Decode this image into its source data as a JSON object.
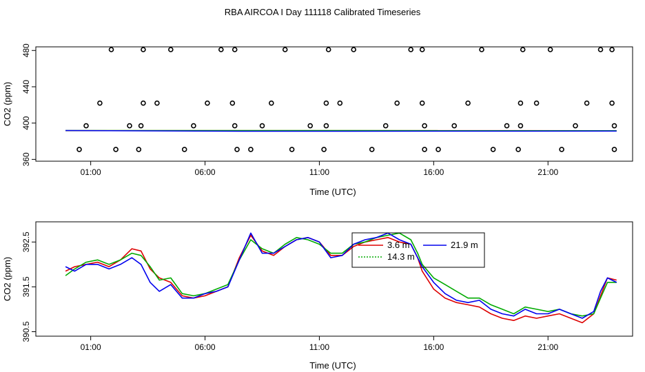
{
  "title": "RBA AIRCOA I  Day 111118  Calibrated Timeseries",
  "chart_data": [
    {
      "type": "scatter",
      "xlabel": "Time (UTC)",
      "ylabel": "CO2 (ppm)",
      "x_unit": "hours",
      "xlim": [
        -1.4,
        24.7
      ],
      "ylim": [
        358,
        484
      ],
      "xticks": [
        1,
        6,
        11,
        16,
        21
      ],
      "xtick_labels": [
        "01:00",
        "06:00",
        "11:00",
        "16:00",
        "21:00"
      ],
      "yticks": [
        360,
        400,
        440,
        480
      ],
      "ytick_labels": [
        "360",
        "400",
        "440",
        "480"
      ],
      "grid": false,
      "markers": [
        [
          0.5,
          371
        ],
        [
          0.8,
          397
        ],
        [
          1.4,
          422
        ],
        [
          1.9,
          481
        ],
        [
          2.1,
          371
        ],
        [
          2.7,
          397
        ],
        [
          3.1,
          371
        ],
        [
          3.2,
          397
        ],
        [
          3.3,
          422
        ],
        [
          3.3,
          481
        ],
        [
          3.9,
          422
        ],
        [
          4.5,
          481
        ],
        [
          5.1,
          371
        ],
        [
          5.5,
          397
        ],
        [
          6.1,
          422
        ],
        [
          6.7,
          481
        ],
        [
          7.2,
          422
        ],
        [
          7.3,
          481
        ],
        [
          7.3,
          397
        ],
        [
          7.4,
          371
        ],
        [
          8.0,
          371
        ],
        [
          8.5,
          397
        ],
        [
          8.9,
          422
        ],
        [
          9.5,
          481
        ],
        [
          9.8,
          371
        ],
        [
          10.6,
          397
        ],
        [
          11.2,
          371
        ],
        [
          11.3,
          422
        ],
        [
          11.3,
          397
        ],
        [
          11.4,
          481
        ],
        [
          11.9,
          422
        ],
        [
          12.5,
          481
        ],
        [
          13.3,
          371
        ],
        [
          13.9,
          397
        ],
        [
          14.4,
          422
        ],
        [
          15.0,
          481
        ],
        [
          15.5,
          481
        ],
        [
          15.5,
          422
        ],
        [
          15.6,
          397
        ],
        [
          15.6,
          371
        ],
        [
          16.2,
          371
        ],
        [
          16.9,
          397
        ],
        [
          17.5,
          422
        ],
        [
          18.1,
          481
        ],
        [
          18.6,
          371
        ],
        [
          19.2,
          397
        ],
        [
          19.7,
          371
        ],
        [
          19.8,
          397
        ],
        [
          19.8,
          422
        ],
        [
          19.9,
          481
        ],
        [
          20.5,
          422
        ],
        [
          21.1,
          481
        ],
        [
          21.6,
          371
        ],
        [
          22.2,
          397
        ],
        [
          22.7,
          422
        ],
        [
          23.3,
          481
        ],
        [
          23.8,
          481
        ],
        [
          23.8,
          422
        ],
        [
          23.9,
          397
        ],
        [
          23.9,
          371
        ]
      ],
      "lines": [
        {
          "color": "#dd0000",
          "values": [
            [
              -0.1,
              391.7
            ],
            [
              24.0,
              391.6
            ]
          ]
        },
        {
          "color": "#00aa00",
          "values": [
            [
              -0.1,
              391.8
            ],
            [
              24.0,
              391.7
            ]
          ]
        },
        {
          "color": "#0000ee",
          "values": [
            [
              -0.1,
              391.8
            ],
            [
              7.6,
              391.0
            ],
            [
              24.0,
              391.2
            ]
          ]
        }
      ]
    },
    {
      "type": "line",
      "xlabel": "Time (UTC)",
      "ylabel": "CO2 (ppm)",
      "x_unit": "hours",
      "xlim": [
        -1.4,
        24.7
      ],
      "ylim": [
        390.4,
        392.95
      ],
      "xticks": [
        1,
        6,
        11,
        16,
        21
      ],
      "xtick_labels": [
        "01:00",
        "06:00",
        "11:00",
        "16:00",
        "21:00"
      ],
      "yticks": [
        390.5,
        391.5,
        392.5
      ],
      "ytick_labels": [
        "390.5",
        "391.5",
        "392.5"
      ],
      "grid": false,
      "legend_position": "top-right",
      "series": [
        {
          "name": "3.6 m",
          "color": "#dd0000",
          "values": [
            [
              -0.1,
              391.85
            ],
            [
              0.3,
              391.95
            ],
            [
              0.8,
              392.0
            ],
            [
              1.3,
              392.05
            ],
            [
              1.8,
              391.95
            ],
            [
              2.3,
              392.1
            ],
            [
              2.8,
              392.35
            ],
            [
              3.2,
              392.3
            ],
            [
              3.6,
              391.9
            ],
            [
              4.0,
              391.7
            ],
            [
              4.5,
              391.6
            ],
            [
              5.0,
              391.3
            ],
            [
              5.5,
              391.25
            ],
            [
              6.0,
              391.3
            ],
            [
              6.5,
              391.4
            ],
            [
              7.0,
              391.5
            ],
            [
              7.5,
              392.15
            ],
            [
              8.0,
              392.65
            ],
            [
              8.5,
              392.3
            ],
            [
              9.0,
              392.2
            ],
            [
              9.5,
              392.4
            ],
            [
              10.0,
              392.55
            ],
            [
              10.5,
              392.6
            ],
            [
              11.0,
              392.5
            ],
            [
              11.5,
              392.2
            ],
            [
              12.0,
              392.2
            ],
            [
              12.5,
              392.4
            ],
            [
              13.0,
              392.5
            ],
            [
              13.5,
              392.55
            ],
            [
              14.0,
              392.6
            ],
            [
              14.5,
              392.5
            ],
            [
              15.0,
              392.45
            ],
            [
              15.3,
              392.15
            ],
            [
              15.5,
              391.85
            ],
            [
              16.0,
              391.45
            ],
            [
              16.5,
              391.25
            ],
            [
              17.0,
              391.15
            ],
            [
              17.5,
              391.1
            ],
            [
              18.0,
              391.05
            ],
            [
              18.5,
              390.9
            ],
            [
              19.0,
              390.8
            ],
            [
              19.5,
              390.75
            ],
            [
              20.0,
              390.85
            ],
            [
              20.5,
              390.8
            ],
            [
              21.0,
              390.85
            ],
            [
              21.5,
              390.9
            ],
            [
              22.0,
              390.8
            ],
            [
              22.5,
              390.7
            ],
            [
              23.0,
              390.9
            ],
            [
              23.3,
              391.3
            ],
            [
              23.6,
              391.7
            ],
            [
              24.0,
              391.65
            ]
          ]
        },
        {
          "name": "14.3 m",
          "color": "#00aa00",
          "values": [
            [
              -0.1,
              391.75
            ],
            [
              0.3,
              391.9
            ],
            [
              0.8,
              392.05
            ],
            [
              1.3,
              392.1
            ],
            [
              1.8,
              392.0
            ],
            [
              2.3,
              392.1
            ],
            [
              2.8,
              392.25
            ],
            [
              3.2,
              392.2
            ],
            [
              3.6,
              391.95
            ],
            [
              4.0,
              391.65
            ],
            [
              4.5,
              391.7
            ],
            [
              5.0,
              391.35
            ],
            [
              5.5,
              391.3
            ],
            [
              6.0,
              391.35
            ],
            [
              6.5,
              391.45
            ],
            [
              7.0,
              391.55
            ],
            [
              7.5,
              392.1
            ],
            [
              8.0,
              392.55
            ],
            [
              8.5,
              392.35
            ],
            [
              9.0,
              392.25
            ],
            [
              9.5,
              392.45
            ],
            [
              10.0,
              392.6
            ],
            [
              10.5,
              392.55
            ],
            [
              11.0,
              392.45
            ],
            [
              11.5,
              392.25
            ],
            [
              12.0,
              392.25
            ],
            [
              12.5,
              392.45
            ],
            [
              13.0,
              392.5
            ],
            [
              13.5,
              392.6
            ],
            [
              14.0,
              392.65
            ],
            [
              14.5,
              392.7
            ],
            [
              15.0,
              392.55
            ],
            [
              15.3,
              392.25
            ],
            [
              15.5,
              392.0
            ],
            [
              16.0,
              391.7
            ],
            [
              16.5,
              391.55
            ],
            [
              17.0,
              391.4
            ],
            [
              17.5,
              391.25
            ],
            [
              18.0,
              391.25
            ],
            [
              18.5,
              391.1
            ],
            [
              19.0,
              391.0
            ],
            [
              19.5,
              390.9
            ],
            [
              20.0,
              391.05
            ],
            [
              20.5,
              391.0
            ],
            [
              21.0,
              390.95
            ],
            [
              21.5,
              391.0
            ],
            [
              22.0,
              390.9
            ],
            [
              22.5,
              390.85
            ],
            [
              23.0,
              390.9
            ],
            [
              23.3,
              391.25
            ],
            [
              23.6,
              391.6
            ],
            [
              24.0,
              391.6
            ]
          ]
        },
        {
          "name": "21.9 m",
          "color": "#0000ee",
          "values": [
            [
              -0.1,
              391.95
            ],
            [
              0.3,
              391.85
            ],
            [
              0.8,
              392.0
            ],
            [
              1.3,
              392.0
            ],
            [
              1.8,
              391.9
            ],
            [
              2.3,
              392.0
            ],
            [
              2.8,
              392.15
            ],
            [
              3.2,
              392.0
            ],
            [
              3.6,
              391.6
            ],
            [
              4.0,
              391.4
            ],
            [
              4.5,
              391.55
            ],
            [
              5.0,
              391.25
            ],
            [
              5.5,
              391.25
            ],
            [
              6.0,
              391.35
            ],
            [
              6.5,
              391.4
            ],
            [
              7.0,
              391.5
            ],
            [
              7.5,
              392.1
            ],
            [
              8.0,
              392.7
            ],
            [
              8.5,
              392.25
            ],
            [
              9.0,
              392.25
            ],
            [
              9.5,
              392.4
            ],
            [
              10.0,
              392.55
            ],
            [
              10.5,
              392.6
            ],
            [
              11.0,
              392.5
            ],
            [
              11.5,
              392.15
            ],
            [
              12.0,
              392.2
            ],
            [
              12.5,
              392.45
            ],
            [
              13.0,
              392.55
            ],
            [
              13.5,
              392.6
            ],
            [
              14.0,
              392.7
            ],
            [
              14.5,
              392.55
            ],
            [
              15.0,
              392.45
            ],
            [
              15.3,
              392.15
            ],
            [
              15.5,
              391.95
            ],
            [
              16.0,
              391.6
            ],
            [
              16.5,
              391.35
            ],
            [
              17.0,
              391.2
            ],
            [
              17.5,
              391.15
            ],
            [
              18.0,
              391.2
            ],
            [
              18.5,
              391.0
            ],
            [
              19.0,
              390.9
            ],
            [
              19.5,
              390.85
            ],
            [
              20.0,
              391.0
            ],
            [
              20.5,
              390.9
            ],
            [
              21.0,
              390.9
            ],
            [
              21.5,
              391.0
            ],
            [
              22.0,
              390.9
            ],
            [
              22.5,
              390.8
            ],
            [
              23.0,
              390.95
            ],
            [
              23.3,
              391.4
            ],
            [
              23.6,
              391.7
            ],
            [
              24.0,
              391.6
            ]
          ]
        }
      ]
    }
  ]
}
